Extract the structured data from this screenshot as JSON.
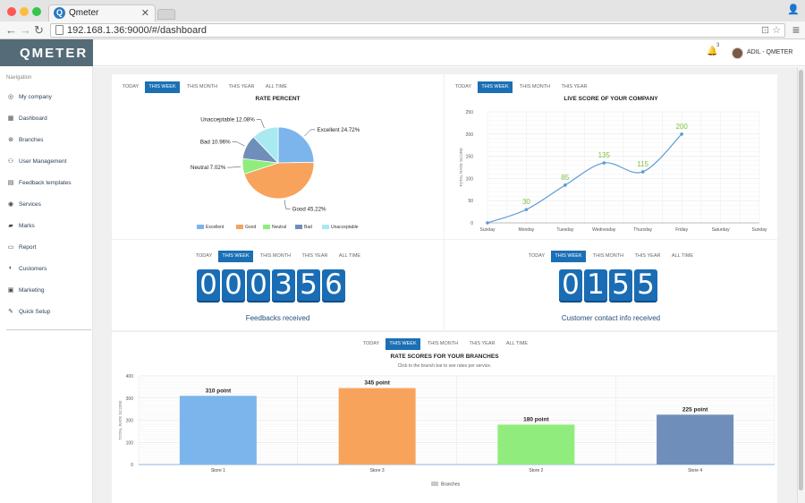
{
  "browser": {
    "tab_title": "Qmeter",
    "tab_logo": "Q",
    "url": "192.168.1.36:9000/#/dashboard",
    "traffic_colors": [
      "#fc5753",
      "#fdbc40",
      "#33c748"
    ]
  },
  "app": {
    "logo": "QMETER",
    "notification_count": "3",
    "username": "ADIL - QMETER"
  },
  "sidebar": {
    "heading": "Navigation",
    "items": [
      {
        "label": "My company",
        "icon": "company-icon"
      },
      {
        "label": "Dashboard",
        "icon": "dashboard-icon"
      },
      {
        "label": "Branches",
        "icon": "branches-icon"
      },
      {
        "label": "User Management",
        "icon": "users-icon"
      },
      {
        "label": "Feedback templates",
        "icon": "templates-icon"
      },
      {
        "label": "Services",
        "icon": "services-icon"
      },
      {
        "label": "Marks",
        "icon": "marks-icon"
      },
      {
        "label": "Report",
        "icon": "report-icon"
      },
      {
        "label": "Customers",
        "icon": "customers-icon"
      },
      {
        "label": "Marketing",
        "icon": "marketing-icon"
      },
      {
        "label": "Quick Setup",
        "icon": "wrench-icon"
      }
    ]
  },
  "filters": {
    "today": "TODAY",
    "this_week": "THIS WEEK",
    "this_month": "THIS MONTH",
    "this_year": "THIS YEAR",
    "all_time": "ALL TIME"
  },
  "rate_percent": {
    "title": "RATE PERCENT",
    "chart_data": {
      "type": "pie",
      "title": "RATE PERCENT",
      "slices": [
        {
          "name": "Excellent",
          "value": 24.72,
          "label": "Excellent 24.72%",
          "color": "#7cb5ec"
        },
        {
          "name": "Good",
          "value": 45.22,
          "label": "Good 45.22%",
          "color": "#f7a35c"
        },
        {
          "name": "Neutral",
          "value": 7.02,
          "label": "Neutral 7.02%",
          "color": "#90ed7d"
        },
        {
          "name": "Bad",
          "value": 10.96,
          "label": "Bad 10.96%",
          "color": "#6f8fba"
        },
        {
          "name": "Unacceptable",
          "value": 12.08,
          "label": "Unacceptable 12.08%",
          "color": "#a8eaf0"
        }
      ],
      "legend": [
        "Excellent",
        "Good",
        "Neutral",
        "Bad",
        "Unacceptable"
      ]
    }
  },
  "live_score": {
    "title": "LIVE SCORE OF YOUR COMPANY",
    "chart_data": {
      "type": "line",
      "title": "LIVE SCORE OF YOUR COMPANY",
      "ylabel": "TOTAL RATE SCORE",
      "categories": [
        "Sunday",
        "Monday",
        "Tuesday",
        "Wednesday",
        "Thursday",
        "Friday",
        "Saturday",
        "Sunday"
      ],
      "values": [
        0,
        30,
        85,
        135,
        115,
        200,
        null,
        null
      ],
      "data_labels": [
        "",
        "30",
        "85",
        "135",
        "115",
        "200",
        "",
        ""
      ],
      "ylim": [
        0,
        250
      ],
      "yticks": [
        "0",
        "50",
        "100",
        "150",
        "200",
        "250"
      ],
      "color": "#5b9bd5",
      "label_color": "#7dc242",
      "grid": true
    }
  },
  "feedbacks": {
    "digits": [
      "0",
      "0",
      "0",
      "3",
      "5",
      "6"
    ],
    "label": "Feedbacks received"
  },
  "contacts": {
    "digits": [
      "0",
      "1",
      "5",
      "5"
    ],
    "label": "Customer contact info received"
  },
  "branches": {
    "title": "RATE SCORES FOR YOUR BRANCHES",
    "subtitle": "Click to the branch bar to see rates per service.",
    "chart_data": {
      "type": "bar",
      "title": "RATE SCORES FOR YOUR BRANCHES",
      "ylabel": "TOTAL RATE SCORE",
      "categories": [
        "Store 1",
        "Store 3",
        "Store 2",
        "Store 4"
      ],
      "values": [
        310,
        345,
        180,
        225
      ],
      "data_labels": [
        "310 point",
        "345 point",
        "180 point",
        "225 point"
      ],
      "colors": [
        "#7cb5ec",
        "#f7a35c",
        "#90ed7d",
        "#6f8fba"
      ],
      "ylim": [
        0,
        400
      ],
      "yticks": [
        "0",
        "100",
        "200",
        "300",
        "400"
      ],
      "legend": [
        "Branches"
      ],
      "legend_color": "#c8c8c8",
      "grid": true
    }
  }
}
